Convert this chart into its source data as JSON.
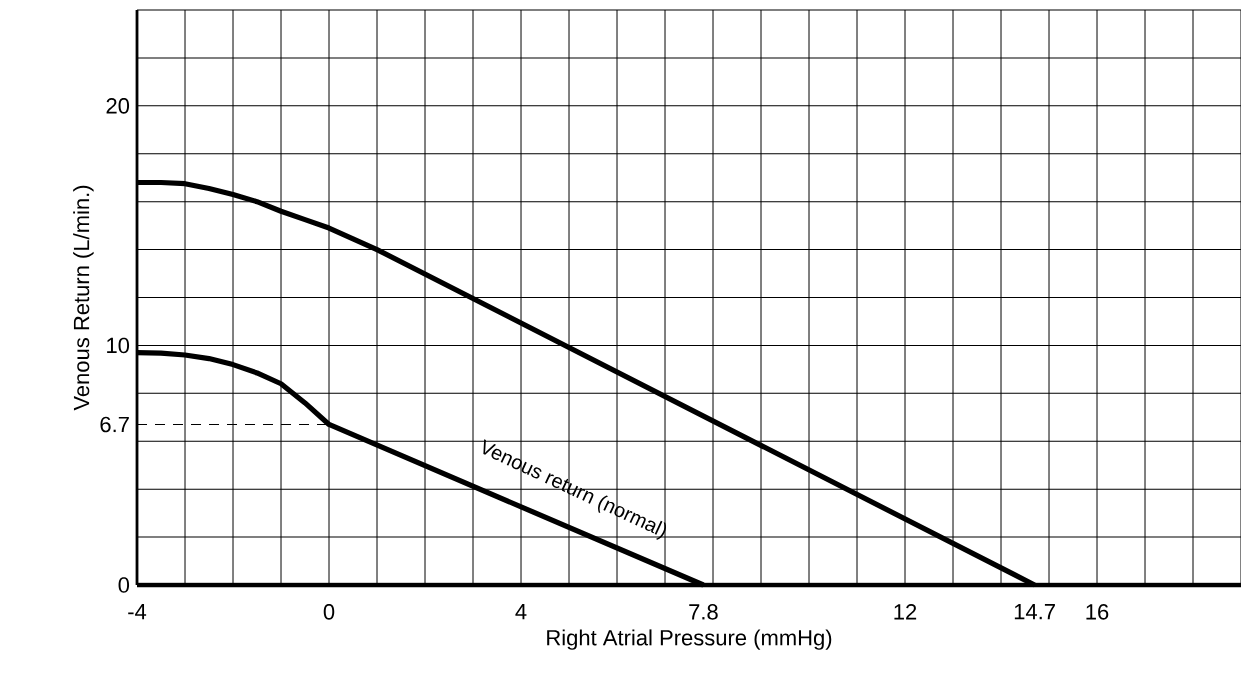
{
  "chart_data": {
    "type": "line",
    "xlabel": "Right Atrial Pressure (mmHg)",
    "ylabel": "Venous Return (L/min.)",
    "xlim": [
      -4,
      19
    ],
    "ylim": [
      0,
      24
    ],
    "xticks": [
      -4,
      0,
      4,
      7.8,
      12,
      14.7,
      16
    ],
    "yticks": [
      0,
      6.7,
      10,
      20
    ],
    "grid": true,
    "series": [
      {
        "color": "#000000",
        "x": [
          -4,
          -3.5,
          -3,
          -2.5,
          -2,
          -1.5,
          -1,
          -0.5,
          0,
          0.5,
          1,
          14.7
        ],
        "values": [
          16.8,
          16.8,
          16.75,
          16.55,
          16.3,
          16.0,
          15.6,
          15.25,
          14.9,
          14.45,
          14.0,
          0
        ]
      },
      {
        "color": "#000000",
        "x": [
          -4,
          -3.5,
          -3,
          -2.5,
          -2,
          -1.5,
          -1,
          -0.5,
          0,
          7.8
        ],
        "values": [
          9.7,
          9.68,
          9.6,
          9.45,
          9.2,
          8.85,
          8.4,
          7.6,
          6.7,
          0
        ]
      },
      {
        "color": "#000000",
        "line_style": "dashed",
        "x": [
          -4,
          0
        ],
        "values": [
          6.7,
          6.7
        ]
      }
    ],
    "annotations": [
      "Venous return (normal)"
    ]
  }
}
